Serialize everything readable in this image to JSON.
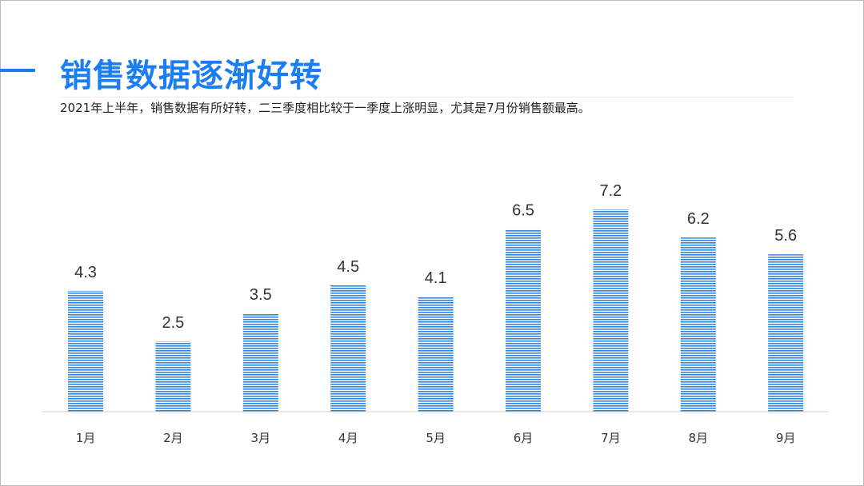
{
  "header": {
    "title": "销售数据逐渐好转",
    "subtitle": "2021年上半年，销售数据有所好转，二三季度相比较于一季度上涨明显，尤其是7月份销售额最高。"
  },
  "colors": {
    "accent": "#1a7ef2",
    "bar": "#2f86e0",
    "axis": "#d0d0d0",
    "label": "#333333"
  },
  "chart_data": {
    "type": "bar",
    "categories": [
      "1月",
      "2月",
      "3月",
      "4月",
      "5月",
      "6月",
      "7月",
      "8月",
      "9月"
    ],
    "values": [
      4.3,
      2.5,
      3.5,
      4.5,
      4.1,
      6.5,
      7.2,
      6.2,
      5.6
    ],
    "data_labels": [
      "4.3",
      "2.5",
      "3.5",
      "4.5",
      "4.1",
      "6.5",
      "7.2",
      "6.2",
      "5.6"
    ],
    "title": "",
    "xlabel": "",
    "ylabel": "",
    "ylim": [
      0,
      7.2
    ],
    "grid": false,
    "legend": "none"
  }
}
